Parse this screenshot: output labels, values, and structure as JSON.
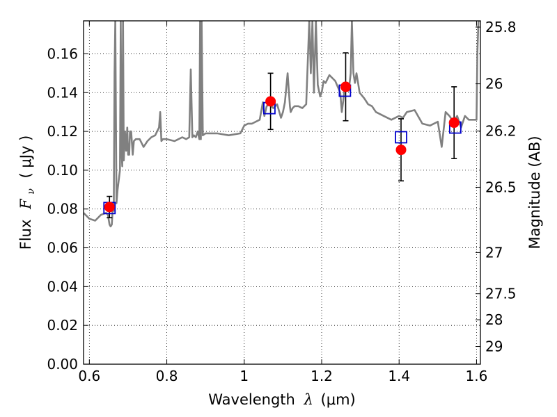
{
  "chart_data": {
    "type": "scatter",
    "xlabel": "Wavelength",
    "xlabel_symbol": "λ",
    "xlabel_unit": "(μm)",
    "ylabel": "Flux",
    "ylabel_symbol": "F",
    "ylabel_subscript": "ν",
    "ylabel_unit": "( μJy )",
    "ylabel_right": "Magnitude (AB)",
    "xlim": [
      0.585,
      1.61
    ],
    "ylim": [
      0.0,
      0.177
    ],
    "x_ticks": [
      "0.6",
      "0.8",
      "1",
      "1.2",
      "1.4",
      "1.6"
    ],
    "y_ticks": [
      "0.00",
      "0.02",
      "0.04",
      "0.06",
      "0.08",
      "0.10",
      "0.12",
      "0.14",
      "0.16"
    ],
    "right_ticks": [
      "25.8",
      "26",
      "26.2",
      "26.5",
      "27",
      "27.5",
      "28",
      "29"
    ],
    "grid": true,
    "colors": {
      "spectrum": "#808080",
      "observed": "#ff0000",
      "model": "#0000cc",
      "errorbar": "#000000"
    },
    "spectrum": {
      "x": [
        0.585,
        0.6,
        0.615,
        0.63,
        0.643,
        0.648,
        0.652,
        0.655,
        0.658,
        0.661,
        0.663,
        0.665,
        0.667,
        0.67,
        0.673,
        0.676,
        0.679,
        0.681,
        0.683,
        0.685,
        0.687,
        0.689,
        0.692,
        0.695,
        0.698,
        0.7,
        0.703,
        0.705,
        0.708,
        0.712,
        0.715,
        0.72,
        0.73,
        0.74,
        0.75,
        0.76,
        0.77,
        0.78,
        0.783,
        0.786,
        0.79,
        0.8,
        0.82,
        0.84,
        0.85,
        0.858,
        0.862,
        0.866,
        0.87,
        0.875,
        0.88,
        0.884,
        0.886,
        0.888,
        0.89,
        0.893,
        0.9,
        0.93,
        0.96,
        0.99,
        1.0,
        1.01,
        1.02,
        1.04,
        1.048,
        1.052,
        1.058,
        1.065,
        1.075,
        1.085,
        1.095,
        1.1,
        1.105,
        1.112,
        1.118,
        1.12,
        1.125,
        1.13,
        1.14,
        1.15,
        1.16,
        1.168,
        1.172,
        1.176,
        1.18,
        1.185,
        1.19,
        1.196,
        1.2,
        1.205,
        1.21,
        1.22,
        1.235,
        1.248,
        1.252,
        1.256,
        1.26,
        1.265,
        1.27,
        1.275,
        1.278,
        1.282,
        1.286,
        1.29,
        1.294,
        1.298,
        1.31,
        1.32,
        1.33,
        1.34,
        1.36,
        1.38,
        1.4,
        1.41,
        1.42,
        1.44,
        1.46,
        1.48,
        1.5,
        1.51,
        1.52,
        1.53,
        1.54,
        1.55,
        1.56,
        1.57,
        1.58,
        1.59,
        1.6,
        1.602,
        1.605,
        1.608,
        1.61
      ],
      "y": [
        0.078,
        0.075,
        0.074,
        0.077,
        0.078,
        0.077,
        0.072,
        0.071,
        0.072,
        0.083,
        0.079,
        0.15,
        0.178,
        0.083,
        0.09,
        0.095,
        0.1,
        0.178,
        0.11,
        0.102,
        0.178,
        0.105,
        0.12,
        0.11,
        0.122,
        0.108,
        0.108,
        0.12,
        0.12,
        0.108,
        0.115,
        0.116,
        0.116,
        0.112,
        0.115,
        0.117,
        0.118,
        0.122,
        0.13,
        0.115,
        0.116,
        0.116,
        0.115,
        0.117,
        0.116,
        0.117,
        0.152,
        0.117,
        0.118,
        0.117,
        0.12,
        0.116,
        0.178,
        0.116,
        0.178,
        0.118,
        0.119,
        0.119,
        0.118,
        0.119,
        0.123,
        0.124,
        0.124,
        0.126,
        0.135,
        0.128,
        0.133,
        0.134,
        0.132,
        0.134,
        0.127,
        0.13,
        0.135,
        0.15,
        0.133,
        0.13,
        0.132,
        0.133,
        0.133,
        0.132,
        0.134,
        0.178,
        0.15,
        0.178,
        0.14,
        0.178,
        0.144,
        0.138,
        0.14,
        0.146,
        0.145,
        0.149,
        0.146,
        0.14,
        0.13,
        0.136,
        0.144,
        0.141,
        0.141,
        0.15,
        0.178,
        0.15,
        0.145,
        0.15,
        0.145,
        0.14,
        0.137,
        0.134,
        0.133,
        0.13,
        0.128,
        0.126,
        0.128,
        0.127,
        0.13,
        0.131,
        0.124,
        0.123,
        0.125,
        0.112,
        0.13,
        0.128,
        0.125,
        0.128,
        0.122,
        0.128,
        0.126,
        0.126,
        0.126,
        0.16,
        0.178,
        0.178,
        0.178
      ]
    },
    "observed": {
      "x": [
        0.652,
        1.068,
        1.262,
        1.405,
        1.542
      ],
      "y": [
        0.081,
        0.1355,
        0.143,
        0.1105,
        0.1245
      ],
      "yerr_low": [
        0.0055,
        0.0145,
        0.0175,
        0.016,
        0.0185
      ],
      "yerr_high": [
        0.0055,
        0.0145,
        0.0175,
        0.016,
        0.0185
      ]
    },
    "model": {
      "x": [
        0.652,
        1.065,
        1.26,
        1.405,
        1.545
      ],
      "y": [
        0.0805,
        0.132,
        0.141,
        0.117,
        0.122
      ]
    }
  }
}
